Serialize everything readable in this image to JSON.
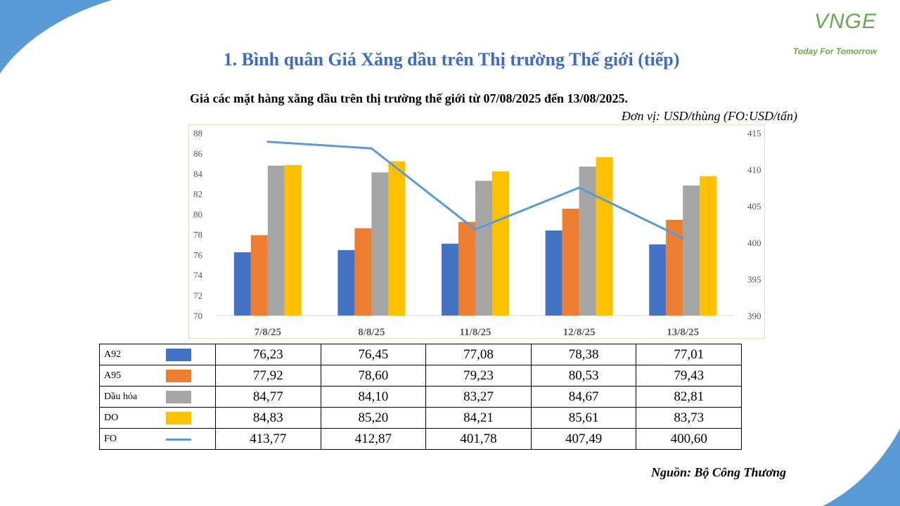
{
  "page": {
    "title": "1. Bình quân Giá Xăng dầu trên Thị trường Thế giới (tiếp)",
    "source": "Nguồn: Bộ Công Thương"
  },
  "logo": {
    "text": "VNGE",
    "tagline": "Today For Tomorrow",
    "color": "#6aa84f"
  },
  "accent_color": "#5b9bd5",
  "title_color": "#3d6cc0",
  "chart_data": {
    "type": "bar",
    "title": "Giá các mặt hàng xăng dầu trên thị trường thế giới từ 07/08/2025 đến 13/08/2025.",
    "unit": "Đơn vị:  USD/thùng (FO:USD/tấn)",
    "categories": [
      "7/8/25",
      "8/8/25",
      "11/8/25",
      "12/8/25",
      "13/8/25"
    ],
    "y_left": {
      "min": 70,
      "max": 88,
      "step": 2,
      "ticks": [
        "70",
        "72",
        "74",
        "76",
        "78",
        "80",
        "82",
        "84",
        "86",
        "88"
      ]
    },
    "y_right": {
      "min": 390,
      "max": 415,
      "step": 5,
      "ticks": [
        "390",
        "395",
        "400",
        "405",
        "410",
        "415"
      ]
    },
    "grid": false,
    "legend": "table-below",
    "series": [
      {
        "name": "A92",
        "type": "bar",
        "axis": "left",
        "color": "#4472c4",
        "values": [
          76.23,
          76.45,
          77.08,
          78.38,
          77.01
        ],
        "labels": [
          "76,23",
          "76,45",
          "77,08",
          "78,38",
          "77,01"
        ]
      },
      {
        "name": "A95",
        "type": "bar",
        "axis": "left",
        "color": "#ed7d31",
        "values": [
          77.92,
          78.6,
          79.23,
          80.53,
          79.43
        ],
        "labels": [
          "77,92",
          "78,60",
          "79,23",
          "80,53",
          "79,43"
        ]
      },
      {
        "name": "Dầu hỏa",
        "type": "bar",
        "axis": "left",
        "color": "#a5a5a5",
        "values": [
          84.77,
          84.1,
          83.27,
          84.67,
          82.81
        ],
        "labels": [
          "84,77",
          "84,10",
          "83,27",
          "84,67",
          "82,81"
        ]
      },
      {
        "name": "DO",
        "type": "bar",
        "axis": "left",
        "color": "#ffc000",
        "values": [
          84.83,
          85.2,
          84.21,
          85.61,
          83.73
        ],
        "labels": [
          "84,83",
          "85,20",
          "84,21",
          "85,61",
          "83,73"
        ]
      },
      {
        "name": "FO",
        "type": "line",
        "axis": "right",
        "color": "#5b9bd5",
        "values": [
          413.77,
          412.87,
          401.78,
          407.49,
          400.6
        ],
        "labels": [
          "413,77",
          "412,87",
          "401,78",
          "407,49",
          "400,60"
        ]
      }
    ]
  }
}
